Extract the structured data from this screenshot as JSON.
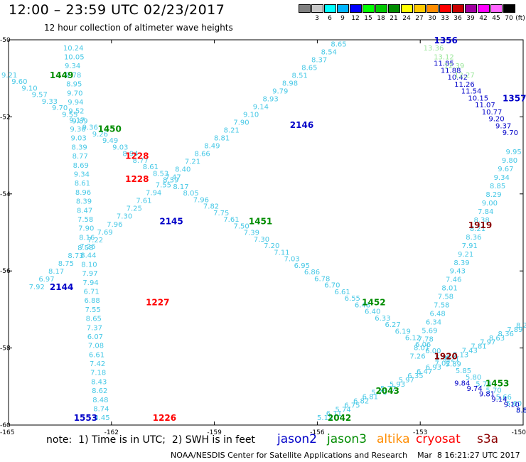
{
  "header": {
    "title": "12:00 – 23:59 UTC 02/23/2017",
    "subtitle": "12 hour collection of altimeter wave heights"
  },
  "colorbar": {
    "unit": "(ft)",
    "bins": [
      {
        "label": "",
        "color": "#808080"
      },
      {
        "label": "3",
        "color": "#c8c8c8"
      },
      {
        "label": "6",
        "color": "#00ffff"
      },
      {
        "label": "9",
        "color": "#00b4ff"
      },
      {
        "label": "12",
        "color": "#0000ff"
      },
      {
        "label": "15",
        "color": "#00ff00"
      },
      {
        "label": "18",
        "color": "#00c800"
      },
      {
        "label": "21",
        "color": "#008c00"
      },
      {
        "label": "24",
        "color": "#ffff00"
      },
      {
        "label": "27",
        "color": "#ffc800"
      },
      {
        "label": "30",
        "color": "#ff8c00"
      },
      {
        "label": "33",
        "color": "#ff0000"
      },
      {
        "label": "36",
        "color": "#c80000"
      },
      {
        "label": "39",
        "color": "#a000a0"
      },
      {
        "label": "42",
        "color": "#ff00ff"
      },
      {
        "label": "45",
        "color": "#ff64ff"
      },
      {
        "label": "70",
        "color": "#000000"
      }
    ]
  },
  "map": {
    "lat_ticks": [
      "-50",
      "-52",
      "-54",
      "-56",
      "-58",
      "-60"
    ],
    "lon_ticks": [
      "-165",
      "-162",
      "-159",
      "-156",
      "-153",
      "-150"
    ],
    "lat_range": [
      -60,
      -50
    ],
    "lon_range": [
      -165,
      -150
    ]
  },
  "passes": [
    {
      "label": "1449",
      "color": "#008c00",
      "lon": -163.8,
      "lat": -50.9
    },
    {
      "label": "1450",
      "color": "#008c00",
      "lon": -162.4,
      "lat": -52.3
    },
    {
      "label": "1228",
      "color": "#ff0000",
      "lon": -161.6,
      "lat": -53.0
    },
    {
      "label": "1228",
      "color": "#ff0000",
      "lon": -161.6,
      "lat": -53.6
    },
    {
      "label": "2146",
      "color": "#0000c8",
      "lon": -156.8,
      "lat": -52.2
    },
    {
      "label": "2145",
      "color": "#0000c8",
      "lon": -160.6,
      "lat": -54.7
    },
    {
      "label": "1451",
      "color": "#008c00",
      "lon": -158.0,
      "lat": -54.7
    },
    {
      "label": "2144",
      "color": "#0000c8",
      "lon": -163.8,
      "lat": -56.4
    },
    {
      "label": "1227",
      "color": "#ff0000",
      "lon": -161.0,
      "lat": -56.8
    },
    {
      "label": "1452",
      "color": "#008c00",
      "lon": -154.7,
      "lat": -56.8
    },
    {
      "label": "1553",
      "color": "#0000c8",
      "lon": -163.1,
      "lat": -59.8
    },
    {
      "label": "1226",
      "color": "#ff0000",
      "lon": -160.8,
      "lat": -59.8
    },
    {
      "label": "2042",
      "color": "#008c00",
      "lon": -155.7,
      "lat": -59.8
    },
    {
      "label": "2043",
      "color": "#008c00",
      "lon": -154.3,
      "lat": -59.1
    },
    {
      "label": "1920",
      "color": "#8c0000",
      "lon": -152.6,
      "lat": -58.2
    },
    {
      "label": "1919",
      "color": "#8c0000",
      "lon": -151.6,
      "lat": -54.8
    },
    {
      "label": "1356",
      "color": "#0000c8",
      "lon": -152.6,
      "lat": -50.0
    },
    {
      "label": "1357",
      "color": "#0000c8",
      "lon": -150.6,
      "lat": -51.5
    },
    {
      "label": "1453",
      "color": "#008c00",
      "lon": -151.1,
      "lat": -58.9
    }
  ],
  "tracks": [
    {
      "name": "track-nw-se",
      "color": "#46c8e6",
      "start": [
        -165.0,
        -50.9
      ],
      "end": [
        -150.0,
        -59.6
      ],
      "values": [
        "9.21",
        "9.60",
        "9.10",
        "9.57",
        "9.33",
        "9.70",
        "9.55",
        "9.89",
        "9.36",
        "9.26",
        "9.49",
        "9.03",
        "8.94",
        "8.77",
        "8.61",
        "8.53",
        "8.39",
        "8.17",
        "8.05",
        "7.96",
        "7.82",
        "7.75",
        "7.61",
        "7.50",
        "7.39",
        "7.30",
        "7.20",
        "7.11",
        "7.03",
        "6.95",
        "6.86",
        "6.78",
        "6.70",
        "6.61",
        "6.55",
        "6.48",
        "6.40",
        "6.33",
        "6.27",
        "6.19",
        "6.12",
        "6.06",
        "6.00",
        "5.95",
        "5.89",
        "5.85",
        "5.80",
        "5.74",
        "5.70",
        "5.66",
        "5.60",
        "5.55"
      ]
    },
    {
      "name": "track-sw-ne",
      "color": "#46c8e6",
      "start": [
        -164.2,
        -56.4
      ],
      "end": [
        -155.4,
        -50.1
      ],
      "values": [
        "7.92",
        "6.97",
        "8.17",
        "8.75",
        "8.73",
        "8.58",
        "7.22",
        "7.69",
        "7.96",
        "7.30",
        "7.25",
        "7.61",
        "7.94",
        "7.55",
        "7.47",
        "8.40",
        "7.21",
        "8.66",
        "8.49",
        "8.81",
        "8.21",
        "7.90",
        "9.10",
        "9.14",
        "8.93",
        "9.79",
        "8.98",
        "8.51",
        "8.65",
        "8.37",
        "8.54",
        "8.65"
      ]
    },
    {
      "name": "track-s-n-west",
      "color": "#46c8e6",
      "start": [
        -162.3,
        -59.8
      ],
      "end": [
        -163.2,
        -50.2
      ],
      "values": [
        "8.45",
        "8.74",
        "8.48",
        "8.62",
        "8.43",
        "7.18",
        "7.42",
        "6.61",
        "7.08",
        "6.07",
        "7.37",
        "8.65",
        "7.55",
        "6.88",
        "6.71",
        "7.94",
        "7.97",
        "8.10",
        "8.44",
        "7.26",
        "8.16",
        "7.90",
        "7.58",
        "8.47",
        "8.39",
        "8.96",
        "8.61",
        "9.34",
        "8.69",
        "8.77",
        "8.39",
        "9.03",
        "9.36",
        "9.17",
        "9.52",
        "9.94",
        "9.70",
        "8.95",
        "9.78",
        "9.34",
        "10.05",
        "10.24"
      ]
    },
    {
      "name": "track-sw-ne-south",
      "color": "#46c8e6",
      "start": [
        -155.8,
        -59.8
      ],
      "end": [
        -150.0,
        -57.4
      ],
      "values": [
        "5.15",
        "6.11",
        "5.74",
        "6.75",
        "6.82",
        "6.81",
        "5.70",
        "5.77",
        "5.93",
        "5.97",
        "6.35",
        "6.47",
        "6.93",
        "7.02",
        "7.21",
        "7.13",
        "7.43",
        "7.81",
        "7.97",
        "8.63",
        "8.36",
        "7.89",
        "8.22"
      ]
    },
    {
      "name": "track-n-s-east",
      "color": "#46c8e6",
      "start": [
        -150.3,
        -52.9
      ],
      "end": [
        -153.1,
        -58.2
      ],
      "values": [
        "9.95",
        "9.80",
        "9.67",
        "9.34",
        "8.85",
        "8.29",
        "9.00",
        "7.84",
        "8.38",
        "8.21",
        "8.36",
        "7.91",
        "9.21",
        "8.39",
        "9.43",
        "7.46",
        "8.01",
        "7.58",
        "7.58",
        "6.48",
        "6.34",
        "5.69",
        "7.78",
        "8.01",
        "7.26"
      ]
    },
    {
      "name": "track-ne-blue",
      "color": "#0000c8",
      "start": [
        -152.4,
        -50.6
      ],
      "end": [
        -150.4,
        -52.4
      ],
      "values": [
        "11.85",
        "11.88",
        "10.42",
        "11.26",
        "11.54",
        "10.15",
        "11.07",
        "10.77",
        "9.20",
        "9.37",
        "9.70"
      ]
    },
    {
      "name": "track-se-blue",
      "color": "#0000c8",
      "start": [
        -151.8,
        -58.9
      ],
      "end": [
        -150.0,
        -59.6
      ],
      "values": [
        "9.84",
        "9.74",
        "9.81",
        "9.14",
        "9.10",
        "8.82"
      ]
    },
    {
      "name": "track-ne-green",
      "color": "#9be69b",
      "start": [
        -152.7,
        -50.2
      ],
      "end": [
        -151.8,
        -50.9
      ],
      "values": [
        "13.36",
        "13.12",
        "12.39",
        "12.27"
      ]
    }
  ],
  "footer": {
    "note": "note:  1) Time is in UTC;  2) SWH is in feet",
    "missions": [
      {
        "label": "jason2",
        "color": "#0000c8"
      },
      {
        "label": "jason3",
        "color": "#008c00"
      },
      {
        "label": "altika",
        "color": "#ff8c00"
      },
      {
        "label": "cryosat",
        "color": "#ff0000"
      },
      {
        "label": "s3a",
        "color": "#8c0000"
      }
    ],
    "credit": "NOAA/NESDIS Center for Satellite Applications and Research    Mar  8 16:21:27 UTC 2017"
  }
}
